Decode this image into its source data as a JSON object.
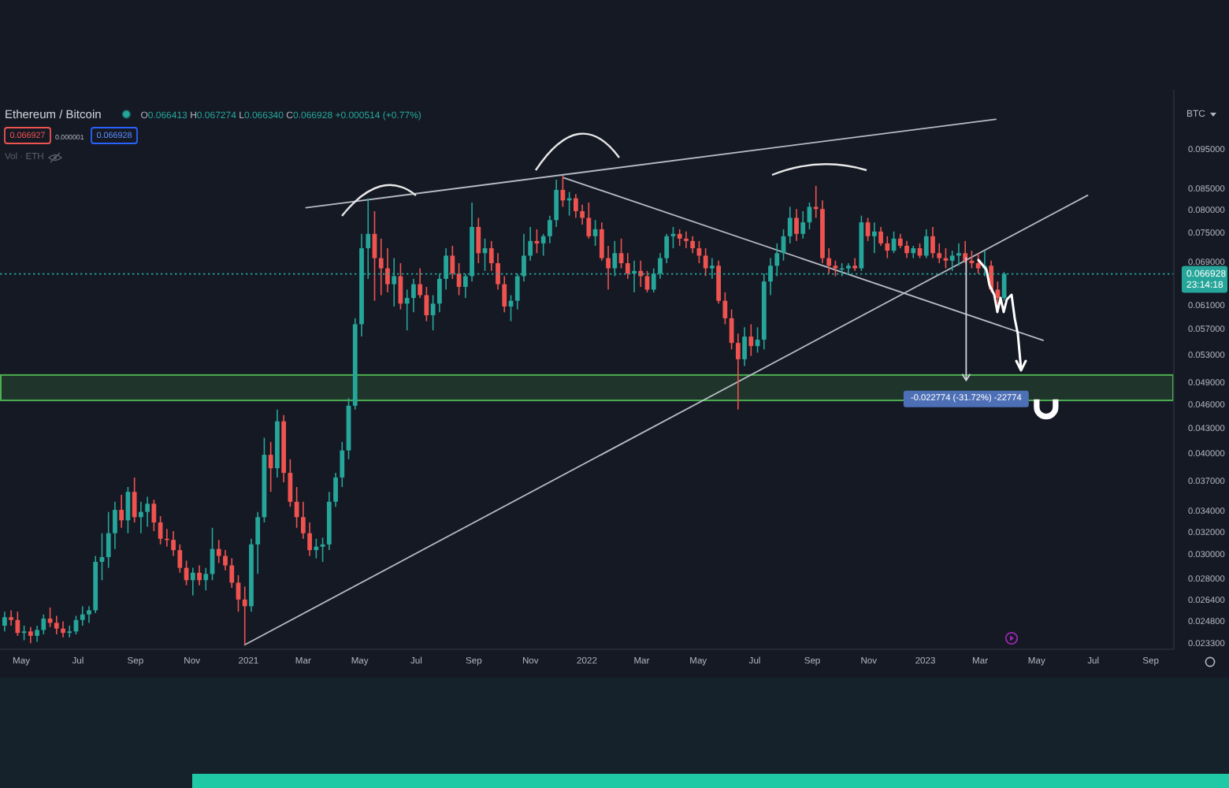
{
  "chart_data": {
    "type": "candlestick",
    "title": "Ethereum / Bitcoin",
    "x": [
      "2020-04-13",
      "2020-04-20",
      "2020-04-27",
      "2020-05-04",
      "2020-05-11",
      "2020-05-18",
      "2020-05-25",
      "2020-06-01",
      "2020-06-08",
      "2020-06-15",
      "2020-06-22",
      "2020-06-29",
      "2020-07-06",
      "2020-07-13",
      "2020-07-20",
      "2020-07-27",
      "2020-08-03",
      "2020-08-10",
      "2020-08-17",
      "2020-08-24",
      "2020-08-31",
      "2020-09-07",
      "2020-09-14",
      "2020-09-21",
      "2020-09-28",
      "2020-10-05",
      "2020-10-12",
      "2020-10-19",
      "2020-10-26",
      "2020-11-02",
      "2020-11-09",
      "2020-11-16",
      "2020-11-23",
      "2020-11-30",
      "2020-12-07",
      "2020-12-14",
      "2020-12-21",
      "2020-12-28",
      "2021-01-04",
      "2021-01-11",
      "2021-01-18",
      "2021-01-25",
      "2021-02-01",
      "2021-02-08",
      "2021-02-15",
      "2021-02-22",
      "2021-03-01",
      "2021-03-08",
      "2021-03-15",
      "2021-03-22",
      "2021-03-29",
      "2021-04-05",
      "2021-04-12",
      "2021-04-19",
      "2021-04-26",
      "2021-05-03",
      "2021-05-10",
      "2021-05-17",
      "2021-05-24",
      "2021-05-31",
      "2021-06-07",
      "2021-06-14",
      "2021-06-21",
      "2021-06-28",
      "2021-07-05",
      "2021-07-12",
      "2021-07-19",
      "2021-07-26",
      "2021-08-02",
      "2021-08-09",
      "2021-08-16",
      "2021-08-23",
      "2021-08-30",
      "2021-09-06",
      "2021-09-13",
      "2021-09-20",
      "2021-09-27",
      "2021-10-04",
      "2021-10-11",
      "2021-10-18",
      "2021-10-25",
      "2021-11-01",
      "2021-11-08",
      "2021-11-15",
      "2021-11-22",
      "2021-11-29",
      "2021-12-06",
      "2021-12-13",
      "2021-12-20",
      "2021-12-27",
      "2022-01-03",
      "2022-01-10",
      "2022-01-17",
      "2022-01-24",
      "2022-01-31",
      "2022-02-07",
      "2022-02-14",
      "2022-02-21",
      "2022-02-28",
      "2022-03-07",
      "2022-03-14",
      "2022-03-21",
      "2022-03-28",
      "2022-04-04",
      "2022-04-11",
      "2022-04-18",
      "2022-04-25",
      "2022-05-02",
      "2022-05-09",
      "2022-05-16",
      "2022-05-23",
      "2022-05-30",
      "2022-06-06",
      "2022-06-13",
      "2022-06-20",
      "2022-06-27",
      "2022-07-04",
      "2022-07-11",
      "2022-07-18",
      "2022-07-25",
      "2022-08-01",
      "2022-08-08",
      "2022-08-15",
      "2022-08-22",
      "2022-08-29",
      "2022-09-05",
      "2022-09-12",
      "2022-09-19",
      "2022-09-26",
      "2022-10-03",
      "2022-10-10",
      "2022-10-17",
      "2022-10-24",
      "2022-10-31",
      "2022-11-07",
      "2022-11-14",
      "2022-11-21",
      "2022-11-28",
      "2022-12-05",
      "2022-12-12",
      "2022-12-19",
      "2022-12-26",
      "2023-01-02",
      "2023-01-09",
      "2023-01-16",
      "2023-01-23",
      "2023-01-30",
      "2023-02-06",
      "2023-02-13",
      "2023-02-20",
      "2023-02-27",
      "2023-03-06",
      "2023-03-13",
      "2023-03-20",
      "2023-03-27"
    ],
    "ohlc": [
      [
        0.0246,
        0.0256,
        0.0242,
        0.0252
      ],
      [
        0.0252,
        0.0257,
        0.0246,
        0.025
      ],
      [
        0.025,
        0.0256,
        0.0239,
        0.0241
      ],
      [
        0.0241,
        0.0246,
        0.0236,
        0.0242
      ],
      [
        0.0242,
        0.0245,
        0.0234,
        0.0239
      ],
      [
        0.0239,
        0.0246,
        0.0235,
        0.0243
      ],
      [
        0.0243,
        0.0254,
        0.024,
        0.0251
      ],
      [
        0.0251,
        0.0259,
        0.0245,
        0.0248
      ],
      [
        0.0248,
        0.0253,
        0.024,
        0.0244
      ],
      [
        0.0244,
        0.0249,
        0.0238,
        0.0241
      ],
      [
        0.0241,
        0.0246,
        0.0238,
        0.0242
      ],
      [
        0.0242,
        0.0253,
        0.024,
        0.025
      ],
      [
        0.025,
        0.026,
        0.0246,
        0.0254
      ],
      [
        0.0254,
        0.026,
        0.0248,
        0.0257
      ],
      [
        0.0257,
        0.03,
        0.0255,
        0.0295
      ],
      [
        0.0295,
        0.032,
        0.028,
        0.0299
      ],
      [
        0.0299,
        0.034,
        0.029,
        0.032
      ],
      [
        0.032,
        0.035,
        0.0306,
        0.0342
      ],
      [
        0.0342,
        0.0357,
        0.0325,
        0.0332
      ],
      [
        0.0332,
        0.0365,
        0.032,
        0.036
      ],
      [
        0.036,
        0.0375,
        0.033,
        0.0335
      ],
      [
        0.0335,
        0.035,
        0.032,
        0.034
      ],
      [
        0.034,
        0.0355,
        0.0326,
        0.0348
      ],
      [
        0.0348,
        0.0352,
        0.0322,
        0.033
      ],
      [
        0.033,
        0.0336,
        0.031,
        0.0315
      ],
      [
        0.0315,
        0.0324,
        0.0308,
        0.0314
      ],
      [
        0.0314,
        0.0322,
        0.03,
        0.0305
      ],
      [
        0.0305,
        0.031,
        0.0286,
        0.029
      ],
      [
        0.029,
        0.0296,
        0.0276,
        0.028
      ],
      [
        0.028,
        0.029,
        0.0268,
        0.0286
      ],
      [
        0.0286,
        0.0292,
        0.0276,
        0.028
      ],
      [
        0.028,
        0.029,
        0.0272,
        0.0285
      ],
      [
        0.0285,
        0.0325,
        0.028,
        0.0306
      ],
      [
        0.0306,
        0.0314,
        0.0294,
        0.03
      ],
      [
        0.03,
        0.0305,
        0.0288,
        0.0292
      ],
      [
        0.0292,
        0.0298,
        0.0274,
        0.0278
      ],
      [
        0.0278,
        0.0284,
        0.0256,
        0.0265
      ],
      [
        0.0265,
        0.0275,
        0.0233,
        0.026
      ],
      [
        0.026,
        0.0315,
        0.0256,
        0.031
      ],
      [
        0.031,
        0.034,
        0.0285,
        0.0335
      ],
      [
        0.0335,
        0.042,
        0.033,
        0.04
      ],
      [
        0.04,
        0.0415,
        0.036,
        0.0385
      ],
      [
        0.0385,
        0.0455,
        0.0375,
        0.044
      ],
      [
        0.044,
        0.0448,
        0.037,
        0.038
      ],
      [
        0.038,
        0.0395,
        0.0345,
        0.035
      ],
      [
        0.035,
        0.0365,
        0.0325,
        0.0335
      ],
      [
        0.0335,
        0.035,
        0.0315,
        0.032
      ],
      [
        0.032,
        0.033,
        0.03,
        0.0305
      ],
      [
        0.0305,
        0.0315,
        0.0298,
        0.0308
      ],
      [
        0.0308,
        0.0316,
        0.0295,
        0.031
      ],
      [
        0.031,
        0.036,
        0.0305,
        0.035
      ],
      [
        0.035,
        0.038,
        0.0345,
        0.0375
      ],
      [
        0.0375,
        0.0415,
        0.0365,
        0.0405
      ],
      [
        0.0405,
        0.047,
        0.0395,
        0.046
      ],
      [
        0.046,
        0.059,
        0.0455,
        0.058
      ],
      [
        0.058,
        0.075,
        0.056,
        0.072
      ],
      [
        0.072,
        0.083,
        0.066,
        0.075
      ],
      [
        0.075,
        0.08,
        0.062,
        0.07
      ],
      [
        0.07,
        0.074,
        0.063,
        0.068
      ],
      [
        0.068,
        0.072,
        0.0635,
        0.065
      ],
      [
        0.065,
        0.07,
        0.061,
        0.0665
      ],
      [
        0.0665,
        0.069,
        0.0605,
        0.0615
      ],
      [
        0.0615,
        0.064,
        0.057,
        0.0625
      ],
      [
        0.0625,
        0.066,
        0.06,
        0.065
      ],
      [
        0.065,
        0.068,
        0.0625,
        0.063
      ],
      [
        0.063,
        0.0645,
        0.0585,
        0.0595
      ],
      [
        0.0595,
        0.063,
        0.057,
        0.0615
      ],
      [
        0.0615,
        0.067,
        0.06,
        0.066
      ],
      [
        0.066,
        0.072,
        0.064,
        0.0705
      ],
      [
        0.0705,
        0.0725,
        0.066,
        0.067
      ],
      [
        0.067,
        0.069,
        0.063,
        0.0645
      ],
      [
        0.0645,
        0.067,
        0.0625,
        0.0665
      ],
      [
        0.0665,
        0.082,
        0.0655,
        0.0765
      ],
      [
        0.0765,
        0.0785,
        0.069,
        0.071
      ],
      [
        0.071,
        0.074,
        0.0675,
        0.072
      ],
      [
        0.072,
        0.0735,
        0.0675,
        0.069
      ],
      [
        0.069,
        0.071,
        0.064,
        0.065
      ],
      [
        0.065,
        0.0665,
        0.06,
        0.061
      ],
      [
        0.061,
        0.063,
        0.0585,
        0.062
      ],
      [
        0.062,
        0.067,
        0.0605,
        0.0665
      ],
      [
        0.0665,
        0.075,
        0.0655,
        0.0705
      ],
      [
        0.0705,
        0.0765,
        0.0695,
        0.0735
      ],
      [
        0.0735,
        0.076,
        0.071,
        0.073
      ],
      [
        0.073,
        0.075,
        0.0705,
        0.0745
      ],
      [
        0.0745,
        0.079,
        0.073,
        0.078
      ],
      [
        0.078,
        0.0875,
        0.0765,
        0.085
      ],
      [
        0.085,
        0.0885,
        0.081,
        0.0825
      ],
      [
        0.0825,
        0.0845,
        0.079,
        0.083
      ],
      [
        0.083,
        0.084,
        0.0785,
        0.08
      ],
      [
        0.08,
        0.0815,
        0.077,
        0.0785
      ],
      [
        0.0785,
        0.082,
        0.074,
        0.0745
      ],
      [
        0.0745,
        0.078,
        0.0725,
        0.076
      ],
      [
        0.076,
        0.0775,
        0.0695,
        0.07
      ],
      [
        0.07,
        0.0725,
        0.064,
        0.068
      ],
      [
        0.068,
        0.0735,
        0.0665,
        0.071
      ],
      [
        0.071,
        0.074,
        0.068,
        0.069
      ],
      [
        0.069,
        0.071,
        0.066,
        0.067
      ],
      [
        0.067,
        0.0695,
        0.0635,
        0.0675
      ],
      [
        0.0675,
        0.0695,
        0.0645,
        0.0665
      ],
      [
        0.0665,
        0.0675,
        0.0635,
        0.064
      ],
      [
        0.064,
        0.068,
        0.0635,
        0.067
      ],
      [
        0.067,
        0.071,
        0.066,
        0.07
      ],
      [
        0.07,
        0.075,
        0.069,
        0.0745
      ],
      [
        0.0745,
        0.0765,
        0.072,
        0.075
      ],
      [
        0.075,
        0.076,
        0.0725,
        0.074
      ],
      [
        0.074,
        0.0755,
        0.072,
        0.0735
      ],
      [
        0.0735,
        0.0745,
        0.071,
        0.072
      ],
      [
        0.072,
        0.0735,
        0.069,
        0.0705
      ],
      [
        0.0705,
        0.072,
        0.0665,
        0.068
      ],
      [
        0.068,
        0.07,
        0.066,
        0.0685
      ],
      [
        0.0685,
        0.0695,
        0.0615,
        0.062
      ],
      [
        0.062,
        0.0635,
        0.058,
        0.059
      ],
      [
        0.059,
        0.0605,
        0.054,
        0.055
      ],
      [
        0.055,
        0.0565,
        0.0455,
        0.0525
      ],
      [
        0.0525,
        0.0575,
        0.0515,
        0.056
      ],
      [
        0.056,
        0.058,
        0.053,
        0.0545
      ],
      [
        0.0545,
        0.0575,
        0.0535,
        0.0555
      ],
      [
        0.0555,
        0.067,
        0.054,
        0.0655
      ],
      [
        0.0655,
        0.07,
        0.063,
        0.0685
      ],
      [
        0.0685,
        0.073,
        0.0665,
        0.071
      ],
      [
        0.071,
        0.076,
        0.0695,
        0.0745
      ],
      [
        0.0745,
        0.081,
        0.073,
        0.0785
      ],
      [
        0.0785,
        0.0805,
        0.0735,
        0.075
      ],
      [
        0.075,
        0.08,
        0.074,
        0.0775
      ],
      [
        0.0775,
        0.082,
        0.076,
        0.081
      ],
      [
        0.081,
        0.086,
        0.0785,
        0.0805
      ],
      [
        0.0805,
        0.0825,
        0.069,
        0.07
      ],
      [
        0.07,
        0.072,
        0.067,
        0.0685
      ],
      [
        0.0685,
        0.0695,
        0.0665,
        0.068
      ],
      [
        0.068,
        0.069,
        0.0665,
        0.068
      ],
      [
        0.068,
        0.069,
        0.067,
        0.0685
      ],
      [
        0.0685,
        0.07,
        0.0675,
        0.068
      ],
      [
        0.068,
        0.079,
        0.0675,
        0.0775
      ],
      [
        0.0775,
        0.0785,
        0.0735,
        0.0745
      ],
      [
        0.0745,
        0.0775,
        0.071,
        0.0755
      ],
      [
        0.0755,
        0.0765,
        0.0725,
        0.073
      ],
      [
        0.073,
        0.0745,
        0.07,
        0.0715
      ],
      [
        0.0715,
        0.0755,
        0.071,
        0.074
      ],
      [
        0.074,
        0.075,
        0.072,
        0.0725
      ],
      [
        0.0725,
        0.0735,
        0.07,
        0.071
      ],
      [
        0.071,
        0.0725,
        0.07,
        0.072
      ],
      [
        0.072,
        0.073,
        0.07,
        0.0705
      ],
      [
        0.0705,
        0.076,
        0.07,
        0.0745
      ],
      [
        0.0745,
        0.0765,
        0.07,
        0.071
      ],
      [
        0.071,
        0.073,
        0.069,
        0.07
      ],
      [
        0.07,
        0.072,
        0.068,
        0.0695
      ],
      [
        0.0695,
        0.0715,
        0.0675,
        0.0705
      ],
      [
        0.0705,
        0.073,
        0.0685,
        0.071
      ],
      [
        0.071,
        0.0735,
        0.069,
        0.0695
      ],
      [
        0.0695,
        0.0715,
        0.068,
        0.069
      ],
      [
        0.069,
        0.071,
        0.067,
        0.068
      ],
      [
        0.068,
        0.0715,
        0.0665,
        0.0685
      ],
      [
        0.0685,
        0.0695,
        0.0635,
        0.064
      ],
      [
        0.064,
        0.0655,
        0.061,
        0.0625
      ],
      [
        0.0625,
        0.067274,
        0.062,
        0.066928
      ]
    ],
    "series": [
      {
        "type": "line",
        "x": [
          "2020-12-28",
          "2023-06-25"
        ],
        "values": [
          0.0233,
          0.0837
        ],
        "color": "#c8ccd6"
      },
      {
        "type": "line",
        "x": [
          "2021-03-04",
          "2023-03-18"
        ],
        "values": [
          0.0808,
          0.1039
        ],
        "color": "#c8ccd6"
      },
      {
        "type": "line",
        "x": [
          "2021-12-07",
          "2023-05-08"
        ],
        "values": [
          0.088,
          0.0554
        ],
        "color": "#c8ccd6"
      }
    ],
    "xlim": [
      "2020-04-08",
      "2023-09-26"
    ],
    "xticks": [
      {
        "value": "2020-05-01",
        "label": "May"
      },
      {
        "value": "2020-07-01",
        "label": "Jul"
      },
      {
        "value": "2020-09-01",
        "label": "Sep"
      },
      {
        "value": "2020-11-01",
        "label": "Nov"
      },
      {
        "value": "2021-01-01",
        "label": "2021"
      },
      {
        "value": "2021-03-01",
        "label": "Mar"
      },
      {
        "value": "2021-05-01",
        "label": "May"
      },
      {
        "value": "2021-07-01",
        "label": "Jul"
      },
      {
        "value": "2021-09-01",
        "label": "Sep"
      },
      {
        "value": "2021-11-01",
        "label": "Nov"
      },
      {
        "value": "2022-01-01",
        "label": "2022"
      },
      {
        "value": "2022-03-01",
        "label": "Mar"
      },
      {
        "value": "2022-05-01",
        "label": "May"
      },
      {
        "value": "2022-07-01",
        "label": "Jul"
      },
      {
        "value": "2022-09-01",
        "label": "Sep"
      },
      {
        "value": "2022-11-01",
        "label": "Nov"
      },
      {
        "value": "2023-01-01",
        "label": "2023"
      },
      {
        "value": "2023-03-01",
        "label": "Mar"
      },
      {
        "value": "2023-05-01",
        "label": "May"
      },
      {
        "value": "2023-07-01",
        "label": "Jul"
      },
      {
        "value": "2023-09-01",
        "label": "Sep"
      }
    ],
    "ylim": [
      0.023,
      0.113
    ],
    "yticks": [
      {
        "value": 0.095,
        "label": "0.095000"
      },
      {
        "value": 0.085,
        "label": "0.085000"
      },
      {
        "value": 0.08,
        "label": "0.080000"
      },
      {
        "value": 0.075,
        "label": "0.075000"
      },
      {
        "value": 0.069,
        "label": "0.069000"
      },
      {
        "value": 0.061,
        "label": "0.061000"
      },
      {
        "value": 0.057,
        "label": "0.057000"
      },
      {
        "value": 0.053,
        "label": "0.053000"
      },
      {
        "value": 0.049,
        "label": "0.049000"
      },
      {
        "value": 0.046,
        "label": "0.046000"
      },
      {
        "value": 0.043,
        "label": "0.043000"
      },
      {
        "value": 0.04,
        "label": "0.040000"
      },
      {
        "value": 0.037,
        "label": "0.037000"
      },
      {
        "value": 0.034,
        "label": "0.034000"
      },
      {
        "value": 0.032,
        "label": "0.032000"
      },
      {
        "value": 0.03,
        "label": "0.030000"
      },
      {
        "value": 0.028,
        "label": "0.028000"
      },
      {
        "value": 0.0264,
        "label": "0.026400"
      },
      {
        "value": 0.0248,
        "label": "0.024800"
      },
      {
        "value": 0.0233,
        "label": "0.023300"
      }
    ],
    "log": true,
    "bands": [
      {
        "axis": "y",
        "from": 0.0467,
        "to": 0.0502,
        "color": "#4caf50"
      }
    ],
    "ref_lines": [
      {
        "axis": "y",
        "value": 0.066928,
        "label": "0.066928",
        "color": "#26a69a",
        "line_style": "dotted"
      }
    ],
    "annotations": [
      "O0.066413 H0.067274 L0.066340 C0.066928 +0.000514 (+0.77%)",
      "0.066927",
      "0.000001",
      "0.066928",
      "Vol · ETH",
      "BTC",
      "23:14:18",
      {
        "text": "-0.022774 (-31.72%) -22774",
        "x": "2023-02-14",
        "y": 0.049
      }
    ]
  }
}
